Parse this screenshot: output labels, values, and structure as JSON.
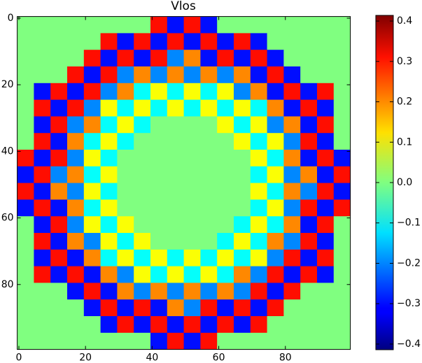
{
  "chart_data": {
    "type": "heatmap",
    "title": "Vlos",
    "colormap": "jet",
    "xlim": [
      -0.5,
      99.5
    ],
    "ylim": [
      99.5,
      -0.5
    ],
    "xticks": [
      0,
      20,
      40,
      60,
      80
    ],
    "yticks": [
      0,
      20,
      40,
      60,
      80
    ],
    "clim": [
      -0.414,
      0.414
    ],
    "cticks": [
      {
        "value": -0.4,
        "label": "−0.4"
      },
      {
        "value": -0.3,
        "label": "−0.3"
      },
      {
        "value": -0.2,
        "label": "−0.2"
      },
      {
        "value": -0.1,
        "label": "−0.1"
      },
      {
        "value": 0,
        "label": "0.0"
      },
      0.1,
      0.2,
      0.3,
      0.4
    ],
    "z": [
      [
        0,
        0,
        0,
        0,
        0,
        0,
        0,
        0,
        0.3,
        -0.3,
        0.3,
        -0.3,
        0,
        0,
        0,
        0,
        0,
        0,
        0,
        0
      ],
      [
        0,
        0,
        0,
        0,
        0,
        0.3,
        -0.3,
        0.3,
        -0.3,
        0.3,
        -0.3,
        0.3,
        -0.3,
        0.3,
        -0.3,
        0,
        0,
        0,
        0,
        0
      ],
      [
        0,
        0,
        0,
        0,
        0.3,
        -0.3,
        0.3,
        -0.3,
        0.3,
        -0.2,
        0.2,
        -0.3,
        0.3,
        -0.3,
        0.3,
        -0.3,
        0,
        0,
        0,
        0
      ],
      [
        0,
        0,
        0,
        0.3,
        -0.3,
        0.3,
        -0.2,
        0.2,
        -0.2,
        0.2,
        -0.2,
        0.2,
        -0.2,
        0.2,
        -0.3,
        0.3,
        -0.3,
        0,
        0,
        0
      ],
      [
        0,
        -0.3,
        0.3,
        -0.3,
        0.3,
        -0.2,
        0.2,
        -0.1,
        0.1,
        -0.1,
        0.1,
        -0.1,
        0.1,
        -0.2,
        0.2,
        -0.3,
        0.3,
        -0.3,
        0.3,
        0
      ],
      [
        0,
        0.3,
        -0.3,
        0.3,
        -0.2,
        0.1,
        -0.1,
        0.1,
        -0.1,
        0.1,
        -0.1,
        0.1,
        -0.1,
        0.1,
        -0.1,
        0.2,
        -0.3,
        0.3,
        -0.3,
        0
      ],
      [
        0,
        -0.3,
        0.3,
        -0.2,
        0.2,
        -0.1,
        0.1,
        -0.1,
        0,
        0,
        0,
        0,
        0.1,
        -0.1,
        0.1,
        -0.2,
        0.2,
        -0.3,
        0.3,
        0
      ],
      [
        0,
        0.3,
        -0.3,
        0.2,
        -0.1,
        0.1,
        -0.1,
        0,
        0,
        0,
        0,
        0,
        0,
        0.1,
        -0.1,
        0.1,
        -0.2,
        0.3,
        -0.3,
        0
      ],
      [
        0.3,
        -0.3,
        0.3,
        -0.2,
        0.1,
        -0.1,
        0,
        0,
        0,
        0,
        0,
        0,
        0,
        0,
        0.1,
        -0.1,
        0.2,
        -0.3,
        0.3,
        -0.3
      ],
      [
        -0.3,
        0.3,
        -0.2,
        0.2,
        -0.1,
        0.1,
        0,
        0,
        0,
        0,
        0,
        0,
        0,
        0,
        -0.1,
        0.1,
        -0.2,
        0.2,
        -0.3,
        0.3
      ],
      [
        0.3,
        -0.3,
        0.2,
        -0.2,
        0.1,
        -0.1,
        0,
        0,
        0,
        0,
        0,
        0,
        0,
        0,
        0.1,
        -0.1,
        0.2,
        -0.2,
        0.3,
        -0.3
      ],
      [
        -0.3,
        0.3,
        -0.3,
        0.2,
        -0.1,
        0.1,
        0,
        0,
        0,
        0,
        0,
        0,
        0,
        0,
        -0.1,
        0.1,
        -0.2,
        0.3,
        -0.3,
        0.3
      ],
      [
        0,
        -0.3,
        0.3,
        -0.2,
        0.1,
        -0.1,
        0.1,
        0,
        0,
        0,
        0,
        0,
        0,
        -0.1,
        0.1,
        -0.1,
        0.2,
        -0.3,
        0.3,
        0
      ],
      [
        0,
        0.3,
        -0.3,
        0.2,
        -0.2,
        0.1,
        -0.1,
        0.1,
        0,
        0,
        0,
        0,
        -0.1,
        0.1,
        -0.1,
        0.2,
        -0.2,
        0.3,
        -0.3,
        0
      ],
      [
        0,
        -0.3,
        0.3,
        -0.3,
        0.2,
        -0.1,
        0.1,
        -0.1,
        0.1,
        -0.1,
        0.1,
        -0.1,
        0.1,
        -0.1,
        0.1,
        -0.2,
        0.3,
        -0.3,
        0.3,
        0
      ],
      [
        0,
        0.3,
        -0.3,
        0.3,
        -0.3,
        0.2,
        -0.2,
        0.1,
        -0.1,
        0.1,
        -0.1,
        0.1,
        -0.1,
        0.2,
        -0.2,
        0.3,
        -0.3,
        0.3,
        -0.3,
        0
      ],
      [
        0,
        0,
        0,
        -0.3,
        0.3,
        -0.3,
        0.2,
        -0.2,
        0.2,
        -0.2,
        0.2,
        -0.2,
        0.2,
        -0.2,
        0.3,
        -0.3,
        0.3,
        0,
        0,
        0
      ],
      [
        0,
        0,
        0,
        0,
        -0.3,
        0.3,
        -0.3,
        0.3,
        -0.3,
        0.2,
        -0.2,
        0.3,
        -0.3,
        0.3,
        -0.3,
        0.3,
        0,
        0,
        0,
        0
      ],
      [
        0,
        0,
        0,
        0,
        0,
        -0.3,
        0.3,
        -0.3,
        0.3,
        -0.3,
        0.3,
        -0.3,
        0.3,
        -0.3,
        0.3,
        0,
        0,
        0,
        0,
        0
      ],
      [
        0,
        0,
        0,
        0,
        0,
        0,
        0,
        0,
        -0.3,
        0.3,
        -0.3,
        0.3,
        0,
        0,
        0,
        0,
        0,
        0,
        0,
        0
      ]
    ]
  }
}
